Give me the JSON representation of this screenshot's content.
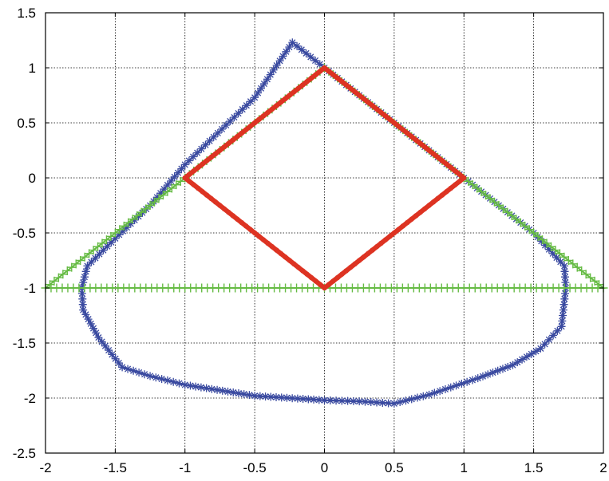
{
  "chart_data": {
    "type": "line",
    "title": "",
    "xlabel": "",
    "ylabel": "",
    "xlim": [
      -2,
      2
    ],
    "ylim": [
      -2.5,
      1.5
    ],
    "grid": true,
    "grid_style": "dotted",
    "x_ticks": [
      -2,
      -1.5,
      -1,
      -0.5,
      0,
      0.5,
      1,
      1.5,
      2
    ],
    "x_tick_labels": [
      "-2",
      "-1.5",
      "-1",
      "-0.5",
      "0",
      "0.5",
      "1",
      "1.5",
      "2"
    ],
    "y_ticks": [
      1.5,
      1,
      0.5,
      0,
      -0.5,
      -1,
      -1.5,
      -2,
      -2.5
    ],
    "y_tick_labels": [
      "1.5",
      "1",
      "0.5",
      "0",
      "-0.5",
      "-1",
      "-1.5",
      "-2",
      "-2.5"
    ],
    "series": [
      {
        "color": "#3a4aa0",
        "marker": "star",
        "closed": true,
        "points": [
          [
            -0.23,
            1.23
          ],
          [
            0,
            1.0
          ],
          [
            1.0,
            0.0
          ],
          [
            1.25,
            -0.25
          ],
          [
            1.5,
            -0.5
          ],
          [
            1.72,
            -0.8
          ],
          [
            1.73,
            -1.0
          ],
          [
            1.7,
            -1.35
          ],
          [
            1.55,
            -1.55
          ],
          [
            1.35,
            -1.7
          ],
          [
            1.1,
            -1.82
          ],
          [
            0.75,
            -1.97
          ],
          [
            0.5,
            -2.05
          ],
          [
            0.25,
            -2.03
          ],
          [
            0.0,
            -2.02
          ],
          [
            -0.5,
            -1.98
          ],
          [
            -1.0,
            -1.88
          ],
          [
            -1.25,
            -1.8
          ],
          [
            -1.45,
            -1.72
          ],
          [
            -1.62,
            -1.45
          ],
          [
            -1.73,
            -1.2
          ],
          [
            -1.74,
            -1.0
          ],
          [
            -1.7,
            -0.8
          ],
          [
            -1.5,
            -0.55
          ],
          [
            -1.25,
            -0.25
          ],
          [
            -1.0,
            0.12
          ],
          [
            -0.5,
            0.73
          ]
        ]
      },
      {
        "color": "#66bb44",
        "marker": "plus",
        "closed": true,
        "points": [
          [
            -2,
            -1
          ],
          [
            0,
            1
          ],
          [
            2,
            -1
          ]
        ]
      },
      {
        "color": "#dd3322",
        "marker": "dot",
        "closed": true,
        "points": [
          [
            -1,
            0
          ],
          [
            0,
            1
          ],
          [
            1,
            0
          ],
          [
            0,
            -1
          ]
        ]
      }
    ]
  }
}
